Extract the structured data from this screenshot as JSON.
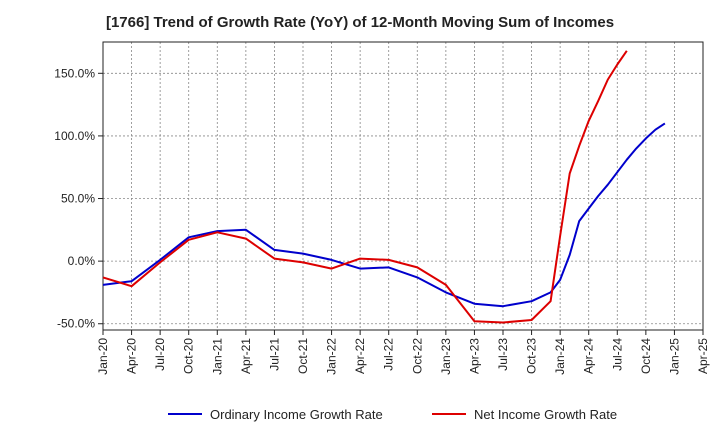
{
  "chart_data": {
    "type": "line",
    "title": "[1766]  Trend of Growth Rate (YoY) of 12-Month Moving Sum of Incomes",
    "xlabel": "",
    "ylabel": "",
    "ylim": [
      -55,
      175
    ],
    "y_ticks": [
      150,
      100,
      50,
      0,
      -50
    ],
    "y_tick_labels": [
      "150.0%",
      "100.0%",
      "50.0%",
      "0.0%",
      "-50.0%"
    ],
    "x_tick_labels": [
      "Jan-20",
      "Apr-20",
      "Jul-20",
      "Oct-20",
      "Jan-21",
      "Apr-21",
      "Jul-21",
      "Oct-21",
      "Jan-22",
      "Apr-22",
      "Jul-22",
      "Oct-22",
      "Jan-23",
      "Apr-23",
      "Jul-23",
      "Oct-23",
      "Jan-24",
      "Apr-24",
      "Jul-24",
      "Oct-24",
      "Jan-25",
      "Apr-25"
    ],
    "x": [
      "Jan-20",
      "Apr-20",
      "Jul-20",
      "Oct-20",
      "Jan-21",
      "Apr-21",
      "Jul-21",
      "Oct-21",
      "Jan-22",
      "Apr-22",
      "Jul-22",
      "Oct-22",
      "Jan-23",
      "Apr-23",
      "Jul-23",
      "Oct-23",
      "Dec-23",
      "Jan-24",
      "Feb-24",
      "Mar-24",
      "Apr-24",
      "May-24",
      "Jun-24",
      "Jul-24",
      "Aug-24",
      "Sep-24",
      "Oct-24",
      "Nov-24",
      "Dec-24",
      "Jan-25"
    ],
    "grid": true,
    "legend_position": "bottom",
    "series": [
      {
        "name": "Ordinary Income Growth Rate",
        "color": "#0000cc",
        "values": [
          -19,
          -16,
          1,
          19,
          24,
          25,
          9,
          6,
          1,
          -6,
          -5,
          -13,
          -25,
          -34,
          -36,
          -32,
          -25,
          -15,
          5,
          32,
          42,
          52,
          61,
          71,
          81,
          90,
          98,
          105,
          110,
          null
        ]
      },
      {
        "name": "Net Income Growth Rate",
        "color": "#dd0000",
        "values": [
          -13,
          -20,
          -1,
          17,
          23,
          18,
          2,
          -1,
          -6,
          2,
          1,
          -5,
          -19,
          -48,
          -49,
          -47,
          -32,
          20,
          70,
          92,
          112,
          128,
          145,
          157,
          168,
          null,
          null,
          null,
          null,
          null
        ]
      }
    ]
  }
}
